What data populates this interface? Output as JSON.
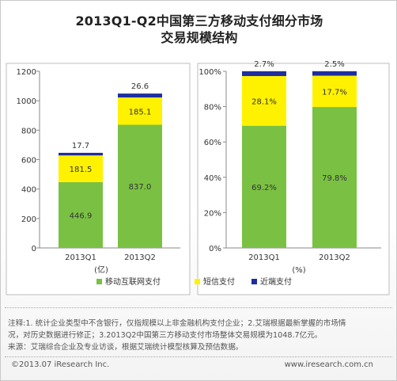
{
  "title": {
    "line1": "2013Q1-Q2中国第三方移动支付细分市场",
    "line2": "交易规模结构"
  },
  "colors": {
    "remote": "#7ac143",
    "sms": "#fff200",
    "nfc": "#1f2e9f"
  },
  "legend": [
    {
      "name": "移动互联网支付",
      "color": "#7ac143"
    },
    {
      "name": "短信支付",
      "color": "#fff200"
    },
    {
      "name": "近端支付",
      "color": "#1f2e9f"
    }
  ],
  "chart_data": [
    {
      "type": "bar",
      "stacked": true,
      "categories": [
        "2013Q1",
        "2013Q2"
      ],
      "unit_label": "(亿)",
      "ylim": [
        0,
        1200
      ],
      "yticks": [
        0,
        200,
        400,
        600,
        800,
        1000,
        1200
      ],
      "series": [
        {
          "name": "移动互联网支付",
          "values": [
            446.9,
            837.0
          ],
          "labels": [
            "446.9",
            "837.0"
          ]
        },
        {
          "name": "短信支付",
          "values": [
            181.5,
            185.1
          ],
          "labels": [
            "181.5",
            "185.1"
          ]
        },
        {
          "name": "近端支付",
          "values": [
            17.7,
            26.6
          ],
          "labels": [
            "17.7",
            "26.6"
          ]
        }
      ],
      "grid": false
    },
    {
      "type": "bar",
      "stacked": true,
      "percent": true,
      "categories": [
        "2013Q1",
        "2013Q2"
      ],
      "unit_label": "(%)",
      "ylim": [
        0,
        100
      ],
      "yticks": [
        0,
        20,
        40,
        60,
        80,
        100
      ],
      "ytick_labels": [
        "0%",
        "20%",
        "40%",
        "60%",
        "80%",
        "100%"
      ],
      "series": [
        {
          "name": "移动互联网支付",
          "values": [
            69.2,
            79.8
          ],
          "labels": [
            "69.2%",
            "79.8%"
          ]
        },
        {
          "name": "短信支付",
          "values": [
            28.1,
            17.7
          ],
          "labels": [
            "28.1%",
            "17.7%"
          ]
        },
        {
          "name": "近端支付",
          "values": [
            2.7,
            2.5
          ],
          "labels": [
            "2.7%",
            "2.5%"
          ]
        }
      ],
      "grid": false
    }
  ],
  "notes": {
    "line1": "注释:1. 统计企业类型中不含银行，仅指规模以上非金融机构支付企业；2.艾瑞根据最新掌握的市场情",
    "line2": "况，对历史数据进行修正；3.2013Q2中国第三方移动支付市场整体交易规模为1048.7亿元。",
    "line3": "来源：艾瑞综合企业及专业访谈，根据艾瑞统计模型核算及预估数据。"
  },
  "footer": {
    "copyright": "©2013.07 iResearch Inc.",
    "website": "www.iresearch.com.cn"
  }
}
